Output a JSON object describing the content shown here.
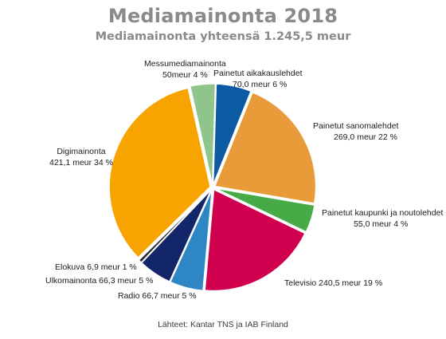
{
  "title": "Mediamainonta 2018",
  "subtitle": "Mediamainonta yhteensä 1.245,5 meur",
  "source": "Lähteet: Kantar TNS ja IAB Finland",
  "chart_data": {
    "type": "pie",
    "title": "Mediamainonta 2018",
    "subtitle": "Mediamainonta yhteensä 1.245,5 meur",
    "unit": "meur",
    "slices": [
      {
        "name": "Painetut aikakauslehdet",
        "value": 70.0,
        "label_line1": "Painetut aikakauslehdet",
        "label_line2": "70,0 meur 6 %",
        "color": "#0b5aa2"
      },
      {
        "name": "Painetut sanomalehdet",
        "value": 269.0,
        "label_line1": "Painetut sanomalehdet",
        "label_line2": "269,0 meur 22 %",
        "color": "#e89b38"
      },
      {
        "name": "Painetut kaupunki ja noutolehdet",
        "value": 55.0,
        "label_line1": "Painetut kaupunki ja noutolehdet",
        "label_line2": "55,0 meur 4 %",
        "color": "#46ab46"
      },
      {
        "name": "Televisio",
        "value": 240.5,
        "label_line1": "Televisio 240,5 meur 19 %",
        "label_line2": "",
        "color": "#d0004e"
      },
      {
        "name": "Radio",
        "value": 66.7,
        "label_line1": "Radio 66,7 meur 5 %",
        "label_line2": "",
        "color": "#2f86c4"
      },
      {
        "name": "Ulkomainonta",
        "value": 66.3,
        "label_line1": "Ulkomainonta 66,3 meur 5 %",
        "label_line2": "",
        "color": "#14266a"
      },
      {
        "name": "Elokuva",
        "value": 6.9,
        "label_line1": "Elokuva 6,9 meur 1 %",
        "label_line2": "",
        "color": "#2a2a2a"
      },
      {
        "name": "Digimainonta",
        "value": 421.1,
        "label_line1": "Digimainonta",
        "label_line2": "421,1 meur 34 %",
        "color": "#f7a300"
      },
      {
        "name": "Messumediamainonta",
        "value": 50.0,
        "label_line1": "Messumediamainonta",
        "label_line2": "50meur 4 %",
        "color": "#8fc48b"
      }
    ]
  }
}
